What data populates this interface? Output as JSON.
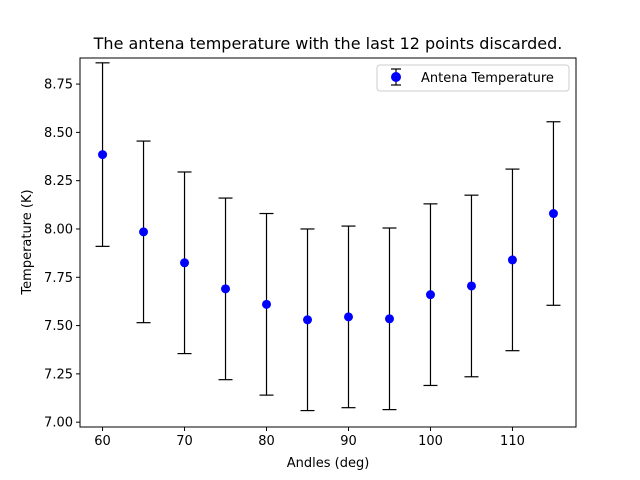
{
  "chart_data": {
    "type": "scatter",
    "title": "The antena temperature with the last 12 points discarded.",
    "xlabel": "Andles (deg)",
    "ylabel": "Temperature (K)",
    "xlim": [
      57.25,
      117.75
    ],
    "ylim": [
      6.975,
      8.885
    ],
    "xticks": [
      60,
      70,
      80,
      90,
      100,
      110
    ],
    "xtick_labels": [
      "60",
      "70",
      "80",
      "90",
      "100",
      "110"
    ],
    "yticks": [
      7.0,
      7.25,
      7.5,
      7.75,
      8.0,
      8.25,
      8.5,
      8.75
    ],
    "ytick_labels": [
      "7.00",
      "7.25",
      "7.50",
      "7.75",
      "8.00",
      "8.25",
      "8.50",
      "8.75"
    ],
    "grid": false,
    "legend_position": "top-right",
    "series": [
      {
        "name": "Antena Temperature",
        "color": "#0000ff",
        "marker": "circle",
        "errorbar_color": "#000000",
        "x": [
          60,
          65,
          70,
          75,
          80,
          85,
          90,
          95,
          100,
          105,
          110,
          115
        ],
        "y": [
          8.385,
          7.985,
          7.825,
          7.69,
          7.61,
          7.53,
          7.545,
          7.535,
          7.66,
          7.705,
          7.84,
          8.08
        ],
        "yerr": [
          0.475,
          0.47,
          0.47,
          0.47,
          0.47,
          0.47,
          0.47,
          0.47,
          0.47,
          0.47,
          0.47,
          0.475
        ]
      }
    ]
  }
}
